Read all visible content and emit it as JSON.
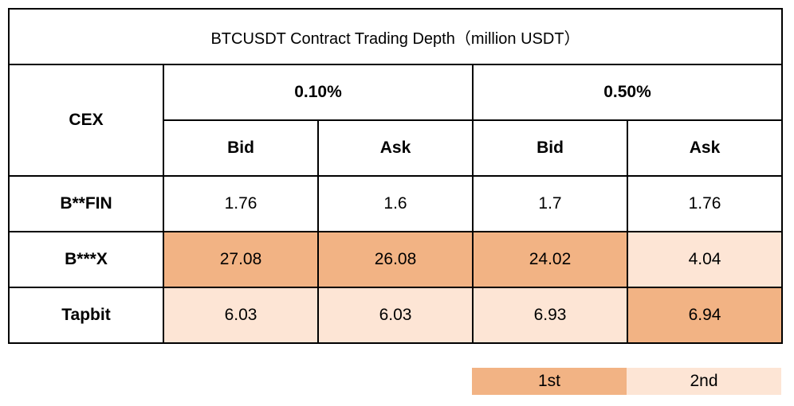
{
  "title": "BTCUSDT Contract Trading Depth（million USDT）",
  "headers": {
    "cex": "CEX",
    "depth_1": "0.10%",
    "depth_2": "0.50%",
    "bid_1": "Bid",
    "ask_1": "Ask",
    "bid_2": "Bid",
    "ask_2": "Ask"
  },
  "rows": [
    {
      "name": "B**FIN",
      "values": [
        "1.76",
        "1.6",
        "1.7",
        "1.76"
      ],
      "ranks": [
        "",
        "",
        "",
        ""
      ]
    },
    {
      "name": "B***X",
      "values": [
        "27.08",
        "26.08",
        "24.02",
        "4.04"
      ],
      "ranks": [
        "1st",
        "1st",
        "1st",
        "2nd"
      ]
    },
    {
      "name": "Tapbit",
      "values": [
        "6.03",
        "6.03",
        "6.93",
        "6.94"
      ],
      "ranks": [
        "2nd",
        "2nd",
        "2nd",
        "1st"
      ]
    }
  ],
  "legend": {
    "first": "1st",
    "second": "2nd",
    "first_color": "#f2b384",
    "second_color": "#fde5d5"
  }
}
